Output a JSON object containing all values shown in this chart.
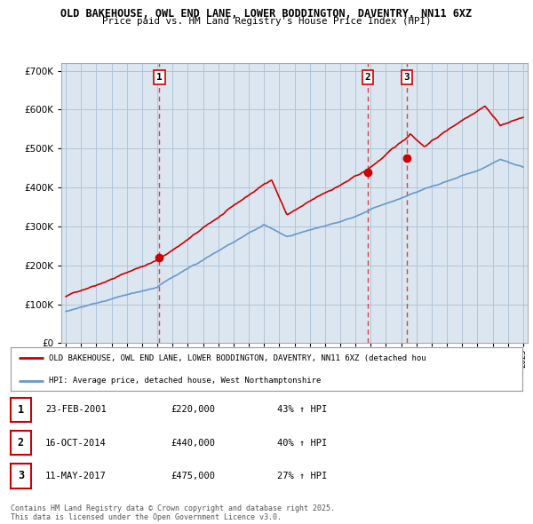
{
  "title_line1": "OLD BAKEHOUSE, OWL END LANE, LOWER BODDINGTON, DAVENTRY, NN11 6XZ",
  "title_line2": "Price paid vs. HM Land Registry's House Price Index (HPI)",
  "background_color": "#ffffff",
  "plot_bg_color": "#dce6f0",
  "grid_color": "#b0c4d8",
  "red_line_color": "#cc0000",
  "blue_line_color": "#6699cc",
  "sale_marker_color": "#cc0000",
  "dashed_line_color": "#cc4444",
  "yticks": [
    0,
    100000,
    200000,
    300000,
    400000,
    500000,
    600000,
    700000
  ],
  "ylim": [
    0,
    720000
  ],
  "xlim_start": 1994.7,
  "xlim_end": 2025.3,
  "sales": [
    {
      "label": "1",
      "year": 2001.14,
      "price": 220000
    },
    {
      "label": "2",
      "year": 2014.79,
      "price": 440000
    },
    {
      "label": "3",
      "year": 2017.36,
      "price": 475000
    }
  ],
  "legend_red_label": "OLD BAKEHOUSE, OWL END LANE, LOWER BODDINGTON, DAVENTRY, NN11 6XZ (detached hou",
  "legend_blue_label": "HPI: Average price, detached house, West Northamptonshire",
  "table_rows": [
    {
      "num": "1",
      "date": "23-FEB-2001",
      "price": "£220,000",
      "change": "43% ↑ HPI"
    },
    {
      "num": "2",
      "date": "16-OCT-2014",
      "price": "£440,000",
      "change": "40% ↑ HPI"
    },
    {
      "num": "3",
      "date": "11-MAY-2017",
      "price": "£475,000",
      "change": "27% ↑ HPI"
    }
  ],
  "footer": "Contains HM Land Registry data © Crown copyright and database right 2025.\nThis data is licensed under the Open Government Licence v3.0."
}
